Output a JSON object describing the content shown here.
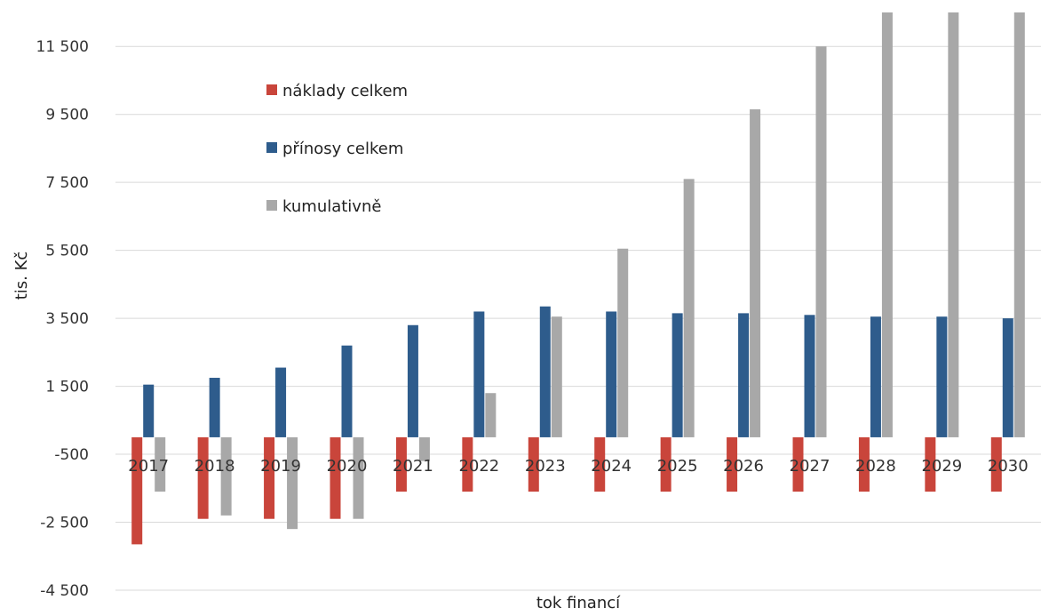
{
  "chart_data": {
    "type": "bar",
    "title": "",
    "xlabel": "tok financí",
    "ylabel": "tis. Kč",
    "ylim": [
      -4500,
      12500
    ],
    "yticks": [
      -4500,
      -2500,
      -500,
      1500,
      3500,
      5500,
      7500,
      9500,
      11500
    ],
    "ytick_labels": [
      "-4 500",
      "-2 500",
      "-500",
      "1 500",
      "3 500",
      "5 500",
      "7 500",
      "9 500",
      "11 500"
    ],
    "grid": true,
    "legend_position": "top-left",
    "categories": [
      "2017",
      "2018",
      "2019",
      "2020",
      "2021",
      "2022",
      "2023",
      "2024",
      "2025",
      "2026",
      "2027",
      "2028",
      "2029",
      "2030"
    ],
    "series": [
      {
        "name": "náklady celkem",
        "color": "#c9453b",
        "values": [
          -3150,
          -2400,
          -2400,
          -2400,
          -1600,
          -1600,
          -1600,
          -1600,
          -1600,
          -1600,
          -1600,
          -1600,
          -1600,
          -1600
        ]
      },
      {
        "name": "přínosy celkem",
        "color": "#2e5c8c",
        "values": [
          1550,
          1750,
          2050,
          2700,
          3300,
          3700,
          3850,
          3700,
          3650,
          3650,
          3600,
          3550,
          3550,
          3500
        ]
      },
      {
        "name": "kumulativně",
        "color": "#a8a8a8",
        "values": [
          -1600,
          -2300,
          -2700,
          -2400,
          -700,
          1300,
          3550,
          5550,
          7600,
          9650,
          11500,
          12500,
          12500,
          12500
        ]
      }
    ]
  }
}
